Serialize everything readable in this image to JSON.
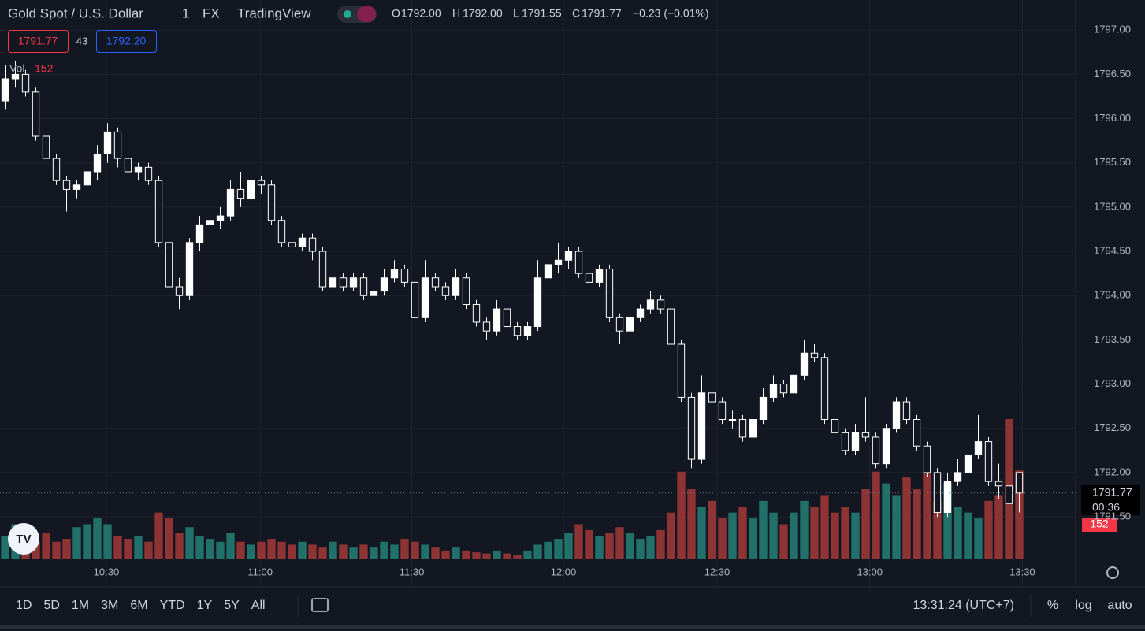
{
  "chart_data": {
    "type": "candlestick",
    "symbol": "Gold Spot / U.S. Dollar",
    "interval": "1",
    "exchange": "FX",
    "source": "TradingView",
    "legend": {
      "o_label": "O",
      "o": "1792.00",
      "h_label": "H",
      "h": "1792.00",
      "l_label": "L",
      "l": "1791.55",
      "c_label": "C",
      "c": "1791.77",
      "change": "−0.23 (−0.01%)"
    },
    "bid": "1791.77",
    "spread": "43",
    "ask": "1792.20",
    "volume_label": "Vol",
    "volume_last": "152",
    "last_price": {
      "value": 1791.77,
      "label": "1791.77"
    },
    "countdown": "00:36",
    "ylim": [
      1791.02,
      1797.34
    ],
    "yticks": [
      {
        "value": 1791.5,
        "label": "1791.50"
      },
      {
        "value": 1792,
        "label": "1792.00"
      },
      {
        "value": 1792.5,
        "label": "1792.50"
      },
      {
        "value": 1793,
        "label": "1793.00"
      },
      {
        "value": 1793.5,
        "label": "1793.50"
      },
      {
        "value": 1794,
        "label": "1794.00"
      },
      {
        "value": 1794.5,
        "label": "1794.50"
      },
      {
        "value": 1795,
        "label": "1795.00"
      },
      {
        "value": 1795.5,
        "label": "1795.50"
      },
      {
        "value": 1796,
        "label": "1796.00"
      },
      {
        "value": 1796.5,
        "label": "1796.50"
      },
      {
        "value": 1797,
        "label": "1797.00"
      }
    ],
    "xticks": [
      {
        "value": 9.88,
        "label": "10:30"
      },
      {
        "value": 24.9,
        "label": "11:00"
      },
      {
        "value": 39.7,
        "label": "11:30"
      },
      {
        "value": 54.5,
        "label": "12:00"
      },
      {
        "value": 69.5,
        "label": "12:30"
      },
      {
        "value": 84.4,
        "label": "13:00"
      },
      {
        "value": 99.3,
        "label": "13:30"
      }
    ],
    "grid": true,
    "candle_color": "#ffffff",
    "up_color": "#22706a",
    "down_color": "#8e3434",
    "volume_ylim": [
      0,
      240
    ],
    "ohlc": [
      [
        1796.2,
        1796.6,
        1796.1,
        1796.45
      ],
      [
        1796.45,
        1796.65,
        1796.35,
        1796.5
      ],
      [
        1796.5,
        1796.55,
        1796.25,
        1796.3
      ],
      [
        1796.3,
        1796.35,
        1795.75,
        1795.8
      ],
      [
        1795.8,
        1795.85,
        1795.5,
        1795.55
      ],
      [
        1795.55,
        1795.6,
        1795.25,
        1795.3
      ],
      [
        1795.3,
        1795.35,
        1794.95,
        1795.2
      ],
      [
        1795.2,
        1795.3,
        1795.1,
        1795.25
      ],
      [
        1795.25,
        1795.45,
        1795.15,
        1795.4
      ],
      [
        1795.4,
        1795.7,
        1795.3,
        1795.6
      ],
      [
        1795.6,
        1795.95,
        1795.5,
        1795.85
      ],
      [
        1795.85,
        1795.9,
        1795.45,
        1795.55
      ],
      [
        1795.55,
        1795.6,
        1795.3,
        1795.4
      ],
      [
        1795.4,
        1795.5,
        1795.3,
        1795.45
      ],
      [
        1795.45,
        1795.5,
        1795.25,
        1795.3
      ],
      [
        1795.3,
        1795.35,
        1794.55,
        1794.6
      ],
      [
        1794.6,
        1794.65,
        1793.9,
        1794.1
      ],
      [
        1794.1,
        1794.2,
        1793.85,
        1794.0
      ],
      [
        1794.0,
        1794.65,
        1793.95,
        1794.6
      ],
      [
        1794.6,
        1794.9,
        1794.5,
        1794.8
      ],
      [
        1794.8,
        1794.95,
        1794.7,
        1794.85
      ],
      [
        1794.85,
        1795.0,
        1794.75,
        1794.9
      ],
      [
        1794.9,
        1795.3,
        1794.85,
        1795.2
      ],
      [
        1795.2,
        1795.4,
        1795.0,
        1795.1
      ],
      [
        1795.1,
        1795.45,
        1795.05,
        1795.3
      ],
      [
        1795.3,
        1795.35,
        1795.15,
        1795.25
      ],
      [
        1795.25,
        1795.3,
        1794.8,
        1794.85
      ],
      [
        1794.85,
        1794.9,
        1794.55,
        1794.6
      ],
      [
        1794.6,
        1794.7,
        1794.45,
        1794.55
      ],
      [
        1794.55,
        1794.7,
        1794.5,
        1794.65
      ],
      [
        1794.65,
        1794.7,
        1794.4,
        1794.5
      ],
      [
        1794.5,
        1794.55,
        1794.05,
        1794.1
      ],
      [
        1794.1,
        1794.25,
        1794.05,
        1794.2
      ],
      [
        1794.2,
        1794.25,
        1794.05,
        1794.1
      ],
      [
        1794.1,
        1794.25,
        1794.05,
        1794.2
      ],
      [
        1794.2,
        1794.25,
        1793.95,
        1794.0
      ],
      [
        1794.0,
        1794.1,
        1793.95,
        1794.05
      ],
      [
        1794.05,
        1794.3,
        1794.0,
        1794.2
      ],
      [
        1794.2,
        1794.4,
        1794.15,
        1794.3
      ],
      [
        1794.3,
        1794.35,
        1794.1,
        1794.15
      ],
      [
        1794.15,
        1794.2,
        1793.7,
        1793.75
      ],
      [
        1793.75,
        1794.4,
        1793.7,
        1794.2
      ],
      [
        1794.2,
        1794.25,
        1794.05,
        1794.1
      ],
      [
        1794.1,
        1794.15,
        1793.95,
        1794.0
      ],
      [
        1794.0,
        1794.3,
        1793.95,
        1794.2
      ],
      [
        1794.2,
        1794.25,
        1793.85,
        1793.9
      ],
      [
        1793.9,
        1793.95,
        1793.65,
        1793.7
      ],
      [
        1793.7,
        1793.75,
        1793.5,
        1793.6
      ],
      [
        1793.6,
        1793.95,
        1793.55,
        1793.85
      ],
      [
        1793.85,
        1793.9,
        1793.6,
        1793.65
      ],
      [
        1793.65,
        1793.7,
        1793.5,
        1793.55
      ],
      [
        1793.55,
        1793.7,
        1793.5,
        1793.65
      ],
      [
        1793.65,
        1794.4,
        1793.6,
        1794.2
      ],
      [
        1794.2,
        1794.45,
        1794.15,
        1794.35
      ],
      [
        1794.35,
        1794.6,
        1794.25,
        1794.4
      ],
      [
        1794.4,
        1794.55,
        1794.3,
        1794.5
      ],
      [
        1794.5,
        1794.55,
        1794.2,
        1794.25
      ],
      [
        1794.25,
        1794.3,
        1794.1,
        1794.15
      ],
      [
        1794.15,
        1794.35,
        1794.1,
        1794.3
      ],
      [
        1794.3,
        1794.35,
        1793.7,
        1793.75
      ],
      [
        1793.75,
        1793.8,
        1793.45,
        1793.6
      ],
      [
        1793.6,
        1793.8,
        1793.55,
        1793.75
      ],
      [
        1793.75,
        1793.9,
        1793.7,
        1793.85
      ],
      [
        1793.85,
        1794.05,
        1793.8,
        1793.95
      ],
      [
        1793.95,
        1794.0,
        1793.8,
        1793.85
      ],
      [
        1793.85,
        1793.9,
        1793.4,
        1793.45
      ],
      [
        1793.45,
        1793.5,
        1792.8,
        1792.85
      ],
      [
        1792.85,
        1792.9,
        1792.05,
        1792.15
      ],
      [
        1792.15,
        1793.1,
        1792.1,
        1792.9
      ],
      [
        1792.9,
        1793.0,
        1792.7,
        1792.8
      ],
      [
        1792.8,
        1792.85,
        1792.55,
        1792.6
      ],
      [
        1792.6,
        1792.7,
        1792.5,
        1792.6
      ],
      [
        1792.6,
        1792.65,
        1792.35,
        1792.4
      ],
      [
        1792.4,
        1792.7,
        1792.35,
        1792.6
      ],
      [
        1792.6,
        1792.95,
        1792.55,
        1792.85
      ],
      [
        1792.85,
        1793.1,
        1792.8,
        1793.0
      ],
      [
        1793.0,
        1793.05,
        1792.85,
        1792.9
      ],
      [
        1792.9,
        1793.2,
        1792.85,
        1793.1
      ],
      [
        1793.1,
        1793.5,
        1793.05,
        1793.35
      ],
      [
        1793.35,
        1793.45,
        1793.25,
        1793.3
      ],
      [
        1793.3,
        1793.35,
        1792.55,
        1792.6
      ],
      [
        1792.6,
        1792.65,
        1792.4,
        1792.45
      ],
      [
        1792.45,
        1792.5,
        1792.2,
        1792.25
      ],
      [
        1792.25,
        1792.55,
        1792.2,
        1792.45
      ],
      [
        1792.45,
        1792.85,
        1792.35,
        1792.4
      ],
      [
        1792.4,
        1792.45,
        1792.05,
        1792.1
      ],
      [
        1792.1,
        1792.55,
        1792.05,
        1792.5
      ],
      [
        1792.5,
        1792.85,
        1792.45,
        1792.8
      ],
      [
        1792.8,
        1792.85,
        1792.55,
        1792.6
      ],
      [
        1792.6,
        1792.65,
        1792.25,
        1792.3
      ],
      [
        1792.3,
        1792.35,
        1791.95,
        1792.0
      ],
      [
        1792.0,
        1792.05,
        1791.5,
        1791.55
      ],
      [
        1791.55,
        1792.0,
        1791.5,
        1791.9
      ],
      [
        1791.9,
        1792.15,
        1791.85,
        1792.0
      ],
      [
        1792.0,
        1792.35,
        1791.95,
        1792.2
      ],
      [
        1792.2,
        1792.65,
        1792.15,
        1792.35
      ],
      [
        1792.35,
        1792.4,
        1791.85,
        1791.9
      ],
      [
        1791.9,
        1792.1,
        1791.7,
        1791.85
      ],
      [
        1791.85,
        1792.1,
        1791.4,
        1791.65
      ],
      [
        1792.0,
        1792.0,
        1791.55,
        1791.77
      ]
    ],
    "volume": [
      40,
      60,
      35,
      30,
      45,
      30,
      35,
      55,
      60,
      70,
      60,
      40,
      35,
      40,
      30,
      80,
      70,
      45,
      55,
      40,
      35,
      30,
      45,
      30,
      25,
      30,
      35,
      30,
      25,
      30,
      25,
      20,
      30,
      25,
      20,
      25,
      20,
      30,
      25,
      35,
      30,
      25,
      20,
      15,
      20,
      15,
      12,
      10,
      15,
      10,
      8,
      15,
      25,
      30,
      35,
      45,
      60,
      50,
      40,
      45,
      55,
      45,
      35,
      40,
      50,
      80,
      150,
      120,
      90,
      100,
      70,
      80,
      90,
      70,
      100,
      80,
      60,
      80,
      100,
      90,
      110,
      80,
      90,
      80,
      120,
      150,
      130,
      110,
      140,
      120,
      150,
      100,
      130,
      90,
      80,
      70,
      100,
      110,
      240,
      152
    ],
    "clock": "13:31:24 (UTC+7)",
    "ranges": [
      "1D",
      "5D",
      "1M",
      "3M",
      "6M",
      "YTD",
      "1Y",
      "5Y",
      "All"
    ],
    "scale_buttons": [
      "%",
      "log",
      "auto"
    ]
  }
}
